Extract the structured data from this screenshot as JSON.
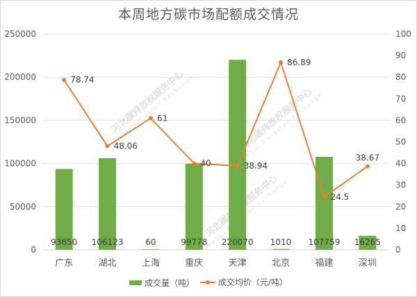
{
  "chart_data": {
    "type": "bar+line",
    "title": "本周地方碳市场配额成交情况",
    "categories": [
      "广东",
      "湖北",
      "上海",
      "重庆",
      "天津",
      "北京",
      "福建",
      "深圳"
    ],
    "series": [
      {
        "name": "成交量（吨）",
        "type": "bar",
        "axis": "left",
        "color": "#70ad47",
        "values": [
          93650,
          106123,
          60,
          99778,
          220070,
          1010,
          107759,
          16265
        ]
      },
      {
        "name": "成交均价（元/吨）",
        "type": "line",
        "axis": "right",
        "color": "#ed7d31",
        "values": [
          78.74,
          48.06,
          61,
          40,
          38.94,
          86.89,
          24.5,
          38.67
        ]
      }
    ],
    "left_axis": {
      "ylim": [
        0,
        250000
      ],
      "ticks": [
        0,
        50000,
        100000,
        150000,
        200000,
        250000
      ]
    },
    "right_axis": {
      "ylim": [
        0,
        100
      ],
      "ticks": [
        0,
        10,
        20,
        30,
        40,
        50,
        60,
        70,
        80,
        90,
        100
      ]
    },
    "grid": true,
    "legend_position": "bottom",
    "xlabel": "",
    "ylabel": ""
  },
  "watermark": {
    "cn": "河北碳排放权服务中心",
    "en": "Hebei Emission Exchange"
  }
}
